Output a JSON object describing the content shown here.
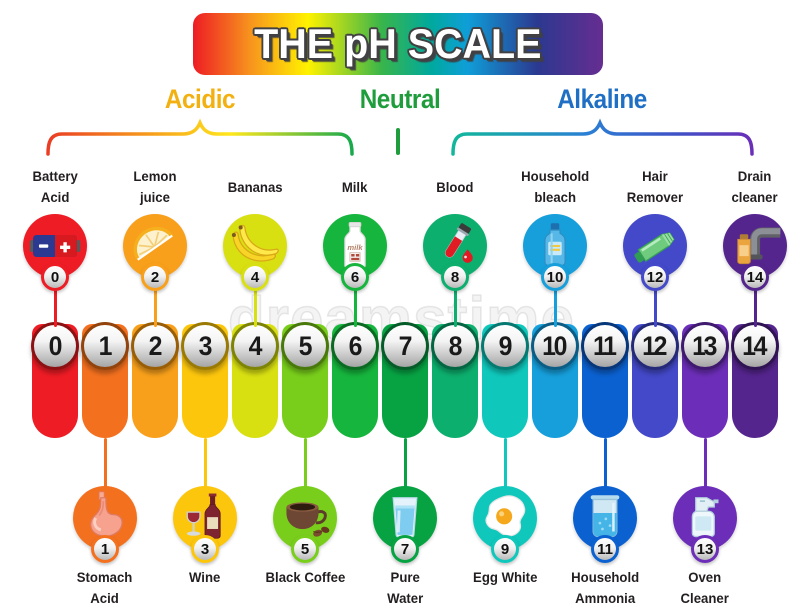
{
  "title": "THE pH SCALE",
  "watermark": "dreamstime",
  "banner_gradient": [
    [
      "#ed1c24",
      0
    ],
    [
      "#f7941d",
      14
    ],
    [
      "#fff200",
      28
    ],
    [
      "#39b54a",
      46
    ],
    [
      "#00a99d",
      58
    ],
    [
      "#0f9ed8",
      67
    ],
    [
      "#2b3990",
      84
    ],
    [
      "#662d91",
      100
    ]
  ],
  "categories": [
    {
      "label": "Acidic",
      "color": "#f2b111"
    },
    {
      "label": "Neutral",
      "color": "#1f9d3c"
    },
    {
      "label": "Alkaline",
      "color": "#1f6fc4"
    }
  ],
  "scale": [
    {
      "ph": "0",
      "color": "#ee1c25",
      "dark": "#8c1113"
    },
    {
      "ph": "1",
      "color": "#f3701f",
      "dark": "#93430c"
    },
    {
      "ph": "2",
      "color": "#f8a01b",
      "dark": "#9a5e07"
    },
    {
      "ph": "3",
      "color": "#fcc60d",
      "dark": "#9a7a05"
    },
    {
      "ph": "4",
      "color": "#d9e012",
      "dark": "#7e8406"
    },
    {
      "ph": "5",
      "color": "#79ce1b",
      "dark": "#49790b"
    },
    {
      "ph": "6",
      "color": "#16b53d",
      "dark": "#0b6b22"
    },
    {
      "ph": "7",
      "color": "#07a343",
      "dark": "#055c28"
    },
    {
      "ph": "8",
      "color": "#0daf6e",
      "dark": "#056644"
    },
    {
      "ph": "9",
      "color": "#0fc7bb",
      "dark": "#067a72"
    },
    {
      "ph": "10",
      "color": "#169fdb",
      "dark": "#0b5d85"
    },
    {
      "ph": "11",
      "color": "#0b61d0",
      "dark": "#07377a"
    },
    {
      "ph": "12",
      "color": "#4349c8",
      "dark": "#252a78"
    },
    {
      "ph": "13",
      "color": "#6c2eb8",
      "dark": "#3f1a6e"
    },
    {
      "ph": "14",
      "color": "#55258e",
      "dark": "#301353"
    }
  ],
  "items": [
    {
      "ph": 0,
      "side": "top",
      "lines": [
        "Battery",
        "Acid"
      ],
      "icon": "battery-icon"
    },
    {
      "ph": 1,
      "side": "bottom",
      "lines": [
        "Stomach",
        "Acid"
      ],
      "icon": "stomach-icon"
    },
    {
      "ph": 2,
      "side": "top",
      "lines": [
        "Lemon",
        "juice"
      ],
      "icon": "lemon-icon"
    },
    {
      "ph": 3,
      "side": "bottom",
      "lines": [
        "Wine"
      ],
      "icon": "wine-icon"
    },
    {
      "ph": 4,
      "side": "top",
      "lines": [
        "Bananas"
      ],
      "icon": "bananas-icon"
    },
    {
      "ph": 5,
      "side": "bottom",
      "lines": [
        "Black Coffee"
      ],
      "icon": "coffee-icon"
    },
    {
      "ph": 6,
      "side": "top",
      "lines": [
        "Milk"
      ],
      "icon": "milk-icon"
    },
    {
      "ph": 7,
      "side": "bottom",
      "lines": [
        "Pure",
        "Water"
      ],
      "icon": "water-icon"
    },
    {
      "ph": 8,
      "side": "top",
      "lines": [
        "Blood"
      ],
      "icon": "blood-icon"
    },
    {
      "ph": 9,
      "side": "bottom",
      "lines": [
        "Egg White"
      ],
      "icon": "egg-icon"
    },
    {
      "ph": 10,
      "side": "top",
      "lines": [
        "Household",
        "bleach"
      ],
      "icon": "bleach-icon"
    },
    {
      "ph": 11,
      "side": "bottom",
      "lines": [
        "Household",
        "Ammonia"
      ],
      "icon": "ammonia-icon"
    },
    {
      "ph": 12,
      "side": "top",
      "lines": [
        "Hair",
        "Remover"
      ],
      "icon": "hair-remover-icon"
    },
    {
      "ph": 13,
      "side": "bottom",
      "lines": [
        "Oven",
        "Cleaner"
      ],
      "icon": "oven-cleaner-icon"
    },
    {
      "ph": 14,
      "side": "top",
      "lines": [
        "Drain",
        "cleaner"
      ],
      "icon": "drain-cleaner-icon"
    }
  ]
}
